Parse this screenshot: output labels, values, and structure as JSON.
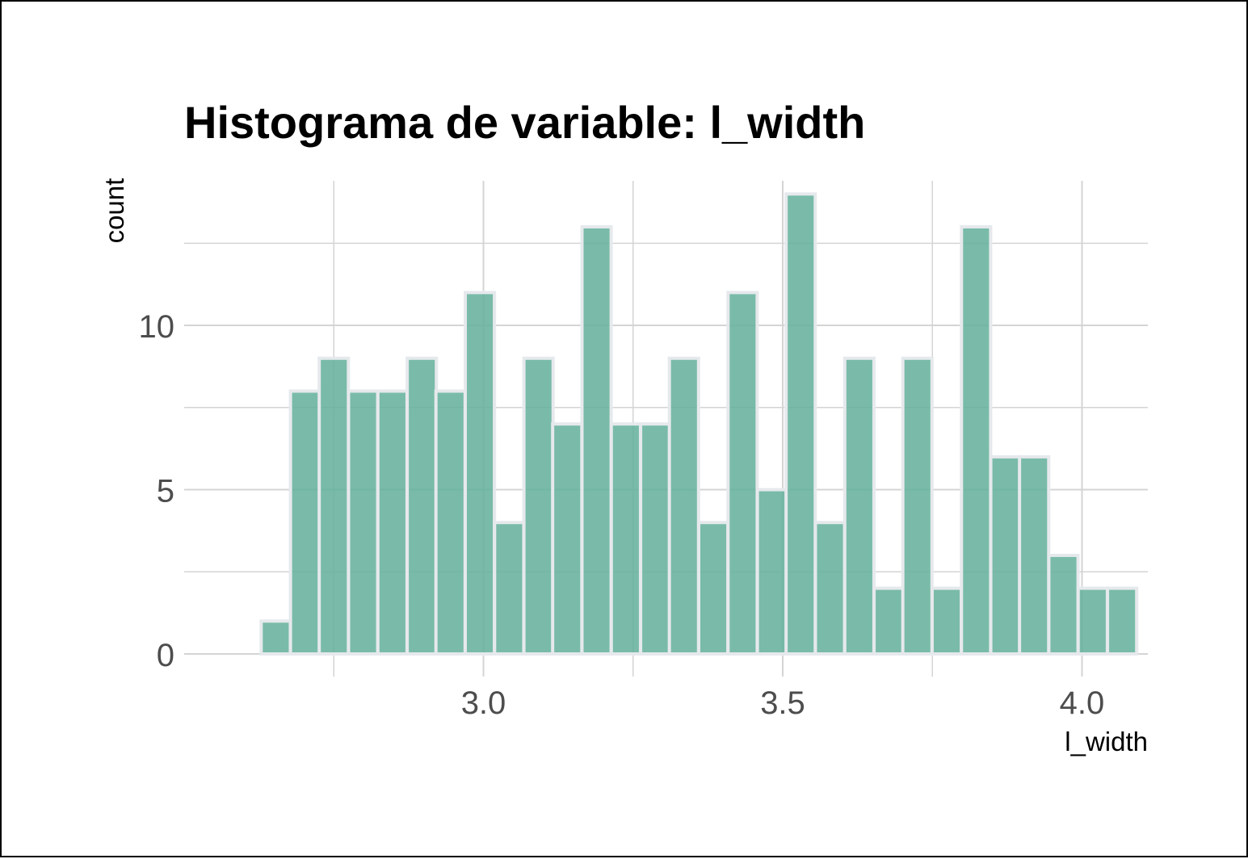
{
  "chart_data": {
    "type": "bar",
    "title": "Histograma de variable: l_width",
    "xlabel": "l_width",
    "ylabel": "count",
    "bin_width": 0.04875,
    "bins": [
      {
        "x": 2.653,
        "count": 1
      },
      {
        "x": 2.702,
        "count": 8
      },
      {
        "x": 2.75,
        "count": 9
      },
      {
        "x": 2.799,
        "count": 8
      },
      {
        "x": 2.848,
        "count": 8
      },
      {
        "x": 2.897,
        "count": 9
      },
      {
        "x": 2.945,
        "count": 8
      },
      {
        "x": 2.994,
        "count": 11
      },
      {
        "x": 3.043,
        "count": 4
      },
      {
        "x": 3.092,
        "count": 9
      },
      {
        "x": 3.14,
        "count": 7
      },
      {
        "x": 3.189,
        "count": 13
      },
      {
        "x": 3.238,
        "count": 7
      },
      {
        "x": 3.287,
        "count": 7
      },
      {
        "x": 3.335,
        "count": 9
      },
      {
        "x": 3.384,
        "count": 4
      },
      {
        "x": 3.433,
        "count": 11
      },
      {
        "x": 3.482,
        "count": 5
      },
      {
        "x": 3.53,
        "count": 14
      },
      {
        "x": 3.579,
        "count": 4
      },
      {
        "x": 3.628,
        "count": 9
      },
      {
        "x": 3.677,
        "count": 2
      },
      {
        "x": 3.725,
        "count": 9
      },
      {
        "x": 3.774,
        "count": 2
      },
      {
        "x": 3.823,
        "count": 13
      },
      {
        "x": 3.872,
        "count": 6
      },
      {
        "x": 3.92,
        "count": 6
      },
      {
        "x": 3.969,
        "count": 3
      },
      {
        "x": 4.018,
        "count": 2
      },
      {
        "x": 4.067,
        "count": 2
      }
    ],
    "x_ticks": [
      {
        "value": 3.0,
        "label": "3.0"
      },
      {
        "value": 3.5,
        "label": "3.5"
      },
      {
        "value": 4.0,
        "label": "4.0"
      }
    ],
    "x_minor_ticks": [
      2.75,
      3.25,
      3.75
    ],
    "y_ticks": [
      {
        "value": 0,
        "label": "0"
      },
      {
        "value": 5,
        "label": "5"
      },
      {
        "value": 10,
        "label": "10"
      }
    ],
    "y_minor_ticks": [
      2.5,
      7.5,
      12.5
    ],
    "xlim": [
      2.5,
      4.11
    ],
    "ylim": [
      0,
      14.4
    ],
    "grid": true,
    "bar_fill": "#66b29c",
    "bar_outline": "#e6e9ec",
    "grid_color": "#d4d4d4"
  }
}
